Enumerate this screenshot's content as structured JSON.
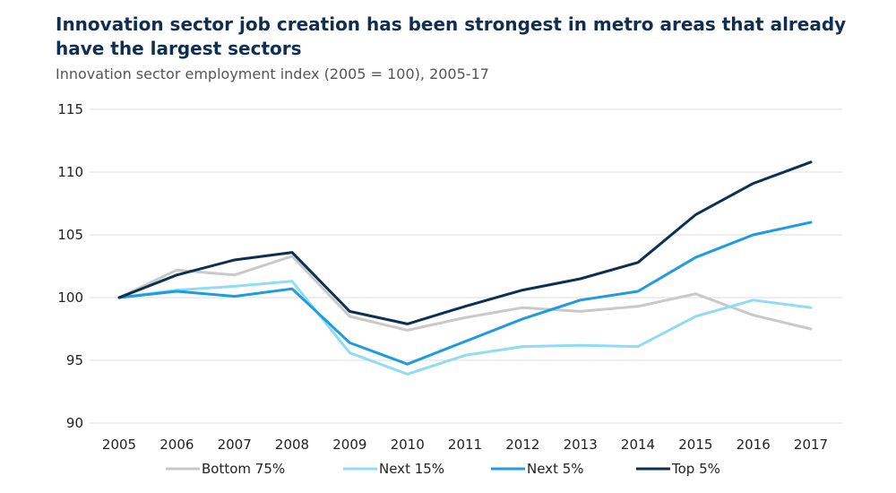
{
  "title": "Innovation sector job creation has been strongest in metro areas that already have the largest sectors",
  "subtitle": "Innovation sector employment index (2005 = 100), 2005-17",
  "chart_data": {
    "type": "line",
    "title": "Innovation sector job creation has been strongest in metro areas that already have the largest sectors",
    "subtitle": "Innovation sector employment index (2005 = 100), 2005-17",
    "xlabel": "",
    "ylabel": "",
    "x": [
      "2005",
      "2006",
      "2007",
      "2008",
      "2009",
      "2010",
      "2011",
      "2012",
      "2013",
      "2014",
      "2015",
      "2016",
      "2017"
    ],
    "ylim": [
      90,
      115
    ],
    "yticks": [
      "90",
      "95",
      "100",
      "105",
      "110",
      "115"
    ],
    "grid": true,
    "legend_position": "bottom",
    "series": [
      {
        "name": "Bottom 75%",
        "color": "#c9c9c9",
        "values": [
          100.0,
          102.2,
          101.8,
          103.3,
          98.5,
          97.4,
          98.4,
          99.2,
          98.9,
          99.3,
          100.3,
          98.6,
          97.5
        ]
      },
      {
        "name": "Next 15%",
        "color": "#8fdcf4",
        "values": [
          100.0,
          100.6,
          100.9,
          101.3,
          95.6,
          93.9,
          95.4,
          96.1,
          96.2,
          96.1,
          98.5,
          99.8,
          99.2
        ]
      },
      {
        "name": "Next 5%",
        "color": "#1f9be0",
        "values": [
          100.0,
          100.5,
          100.1,
          100.7,
          96.4,
          94.7,
          96.5,
          98.3,
          99.8,
          100.5,
          103.2,
          105.0,
          106.0
        ]
      },
      {
        "name": "Top 5%",
        "color": "#0c2f52",
        "values": [
          100.0,
          101.8,
          103.0,
          103.6,
          98.9,
          97.9,
          99.3,
          100.6,
          101.5,
          102.8,
          106.6,
          109.1,
          110.8
        ]
      }
    ]
  }
}
